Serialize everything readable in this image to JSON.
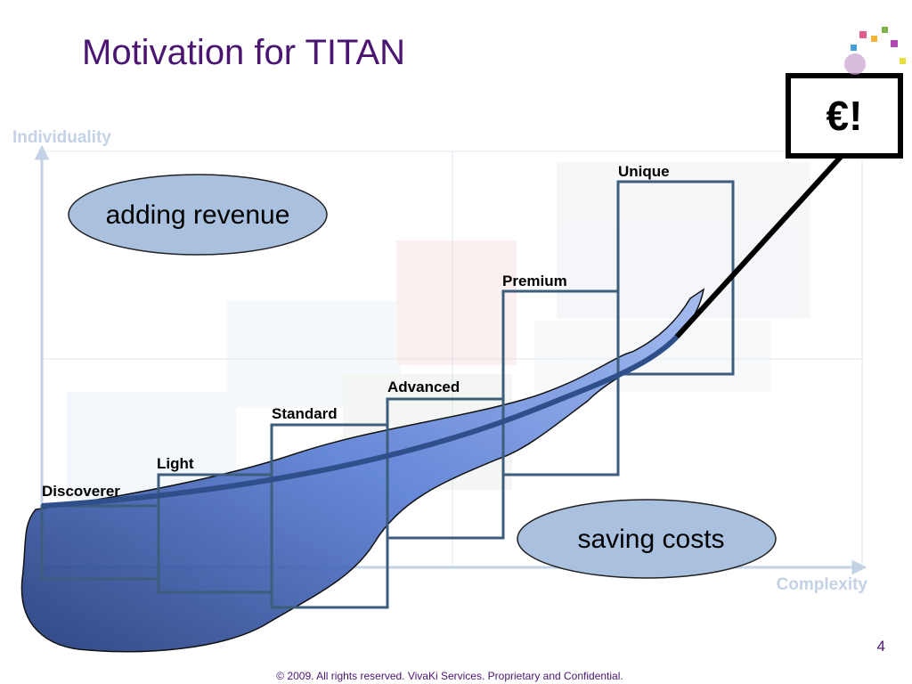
{
  "title": "Motivation for TITAN",
  "axes": {
    "y_label": "Individuality",
    "x_label": "Complexity"
  },
  "callouts": [
    "adding revenue",
    "saving costs"
  ],
  "levels": [
    "Discoverer",
    "Light",
    "Standard",
    "Advanced",
    "Premium",
    "Unique"
  ],
  "badge": "€!",
  "page_number": "4",
  "footer": "© 2009.  All rights reserved. VivaKi Services. Proprietary and Confidential."
}
